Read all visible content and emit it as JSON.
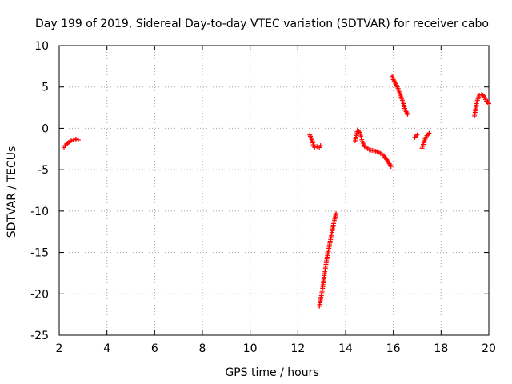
{
  "chart_data": {
    "type": "scatter",
    "title": "Day 199 of 2019, Sidereal Day-to-day VTEC variation (SDTVAR) for receiver cabo",
    "xlabel": "GPS time / hours",
    "ylabel": "SDTVAR / TECUs",
    "xlim": [
      2,
      20
    ],
    "ylim": [
      -25,
      10
    ],
    "xticks": [
      2,
      4,
      6,
      8,
      10,
      12,
      14,
      16,
      18,
      20
    ],
    "yticks": [
      -25,
      -20,
      -15,
      -10,
      -5,
      0,
      5,
      10
    ],
    "xtick_labels": [
      "2",
      "4",
      "6",
      "8",
      "10",
      "12",
      "14",
      "16",
      "18",
      "20"
    ],
    "ytick_labels": [
      "-25",
      "-20",
      "-15",
      "-10",
      "-5",
      "0",
      "5",
      "10"
    ],
    "grid": true,
    "marker": "+",
    "color": "#ff0000",
    "series": [
      {
        "name": "SDTVAR",
        "segments": [
          [
            [
              2.2,
              -2.3
            ],
            [
              2.3,
              -1.9
            ],
            [
              2.4,
              -1.7
            ],
            [
              2.5,
              -1.5
            ],
            [
              2.6,
              -1.4
            ],
            [
              2.7,
              -1.3
            ],
            [
              2.8,
              -1.4
            ]
          ],
          [
            [
              12.5,
              -0.8
            ],
            [
              12.6,
              -1.5
            ],
            [
              12.65,
              -2.0
            ],
            [
              12.7,
              -2.3
            ],
            [
              12.8,
              -2.2
            ],
            [
              12.9,
              -2.3
            ],
            [
              12.95,
              -2.1
            ]
          ],
          [
            [
              12.9,
              -21.5
            ],
            [
              13.0,
              -20.0
            ],
            [
              13.1,
              -18.0
            ],
            [
              13.2,
              -16.0
            ],
            [
              13.3,
              -14.5
            ],
            [
              13.4,
              -13.0
            ],
            [
              13.5,
              -11.5
            ],
            [
              13.6,
              -10.3
            ]
          ],
          [
            [
              14.4,
              -1.5
            ],
            [
              14.5,
              -0.2
            ],
            [
              14.6,
              -0.5
            ],
            [
              14.7,
              -1.6
            ],
            [
              14.8,
              -2.2
            ],
            [
              15.0,
              -2.6
            ],
            [
              15.2,
              -2.7
            ],
            [
              15.4,
              -2.9
            ],
            [
              15.6,
              -3.3
            ],
            [
              15.8,
              -4.1
            ],
            [
              15.9,
              -4.6
            ]
          ],
          [
            [
              15.95,
              6.3
            ],
            [
              16.0,
              5.9
            ],
            [
              16.1,
              5.4
            ],
            [
              16.2,
              4.8
            ],
            [
              16.3,
              4.0
            ],
            [
              16.4,
              3.2
            ],
            [
              16.5,
              2.2
            ],
            [
              16.6,
              1.7
            ]
          ],
          [
            [
              16.9,
              -1.1
            ],
            [
              17.0,
              -0.8
            ]
          ],
          [
            [
              17.2,
              -2.4
            ],
            [
              17.3,
              -1.5
            ],
            [
              17.4,
              -0.9
            ],
            [
              17.5,
              -0.6
            ]
          ],
          [
            [
              19.4,
              1.5
            ],
            [
              19.5,
              3.2
            ],
            [
              19.6,
              4.0
            ],
            [
              19.7,
              4.1
            ],
            [
              19.8,
              3.9
            ],
            [
              19.9,
              3.3
            ],
            [
              20.0,
              3.0
            ]
          ]
        ]
      }
    ]
  }
}
